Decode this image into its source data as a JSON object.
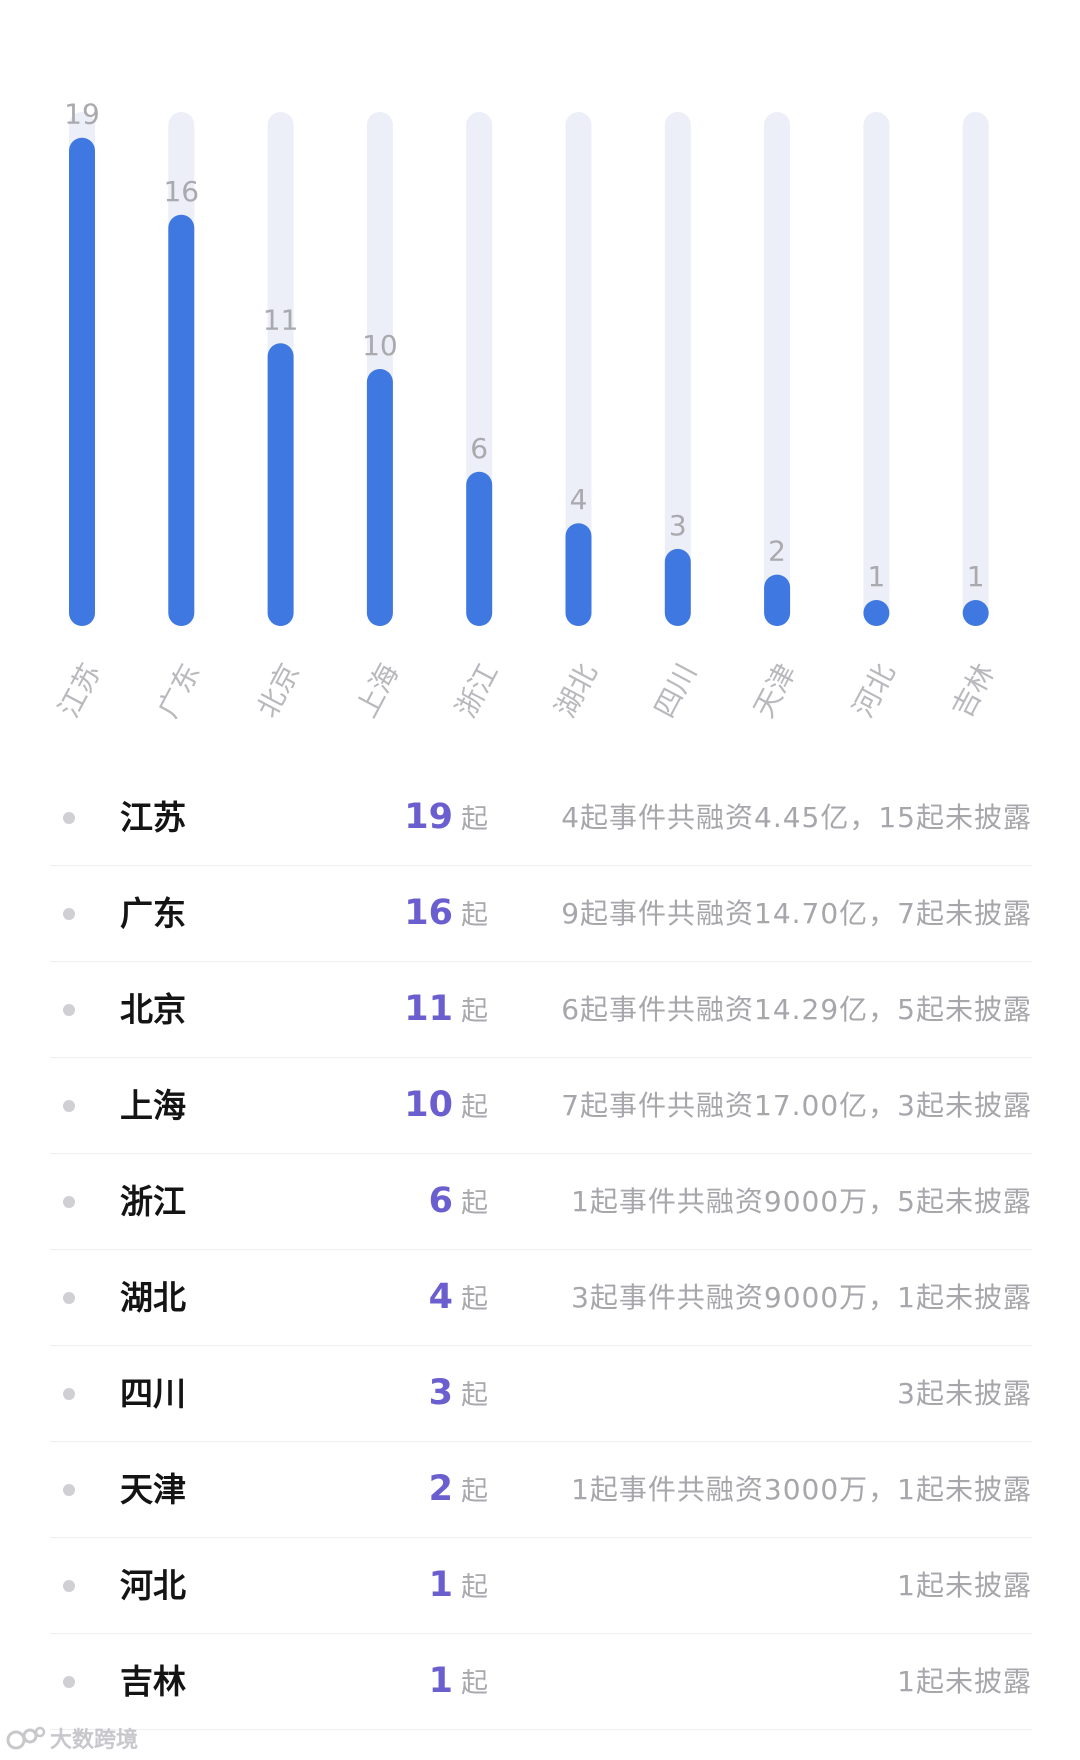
{
  "chart_data": {
    "type": "bar",
    "categories": [
      "江苏",
      "广东",
      "北京",
      "上海",
      "浙江",
      "湖北",
      "四川",
      "天津",
      "河北",
      "吉林"
    ],
    "values": [
      19,
      16,
      11,
      10,
      6,
      4,
      3,
      2,
      1,
      1
    ],
    "ylim": [
      0,
      20
    ],
    "grid": false,
    "colors": {
      "bar": "#3f78e0",
      "track": "#eceef8",
      "value_label": "#a9a9ae",
      "category_label": "#b8b8bd"
    }
  },
  "table": {
    "unit": "起",
    "rows": [
      {
        "region": "江苏",
        "count": "19",
        "detail": "4起事件共融资4.45亿，15起未披露"
      },
      {
        "region": "广东",
        "count": "16",
        "detail": "9起事件共融资14.70亿，7起未披露"
      },
      {
        "region": "北京",
        "count": "11",
        "detail": "6起事件共融资14.29亿，5起未披露"
      },
      {
        "region": "上海",
        "count": "10",
        "detail": "7起事件共融资17.00亿，3起未披露"
      },
      {
        "region": "浙江",
        "count": "6",
        "detail": "1起事件共融资9000万，5起未披露"
      },
      {
        "region": "湖北",
        "count": "4",
        "detail": "3起事件共融资9000万，1起未披露"
      },
      {
        "region": "四川",
        "count": "3",
        "detail": "3起未披露"
      },
      {
        "region": "天津",
        "count": "2",
        "detail": "1起事件共融资3000万，1起未披露"
      },
      {
        "region": "河北",
        "count": "1",
        "detail": "1起未披露"
      },
      {
        "region": "吉林",
        "count": "1",
        "detail": "1起未披露"
      }
    ]
  },
  "watermark": {
    "text": "大数跨境",
    "icon": "logo-icon"
  }
}
